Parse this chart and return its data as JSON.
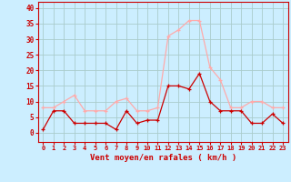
{
  "hours": [
    0,
    1,
    2,
    3,
    4,
    5,
    6,
    7,
    8,
    9,
    10,
    11,
    12,
    13,
    14,
    15,
    16,
    17,
    18,
    19,
    20,
    21,
    22,
    23
  ],
  "wind_avg": [
    1,
    7,
    7,
    3,
    3,
    3,
    3,
    1,
    7,
    3,
    4,
    4,
    15,
    15,
    14,
    19,
    10,
    7,
    7,
    7,
    3,
    3,
    6,
    3
  ],
  "wind_gust": [
    8,
    8,
    10,
    12,
    7,
    7,
    7,
    10,
    11,
    7,
    7,
    8,
    31,
    33,
    36,
    36,
    21,
    17,
    8,
    8,
    10,
    10,
    8,
    8
  ],
  "color_avg": "#cc0000",
  "color_gust": "#ffaaaa",
  "bg_color": "#cceeff",
  "grid_color": "#aacccc",
  "xlabel": "Vent moyen/en rafales ( km/h )",
  "xlabel_color": "#cc0000",
  "yticks": [
    0,
    5,
    10,
    15,
    20,
    25,
    30,
    35,
    40
  ],
  "ylim": [
    -3,
    42
  ],
  "xlim": [
    -0.5,
    23.5
  ],
  "tick_color": "#cc0000",
  "label_color": "#cc0000"
}
